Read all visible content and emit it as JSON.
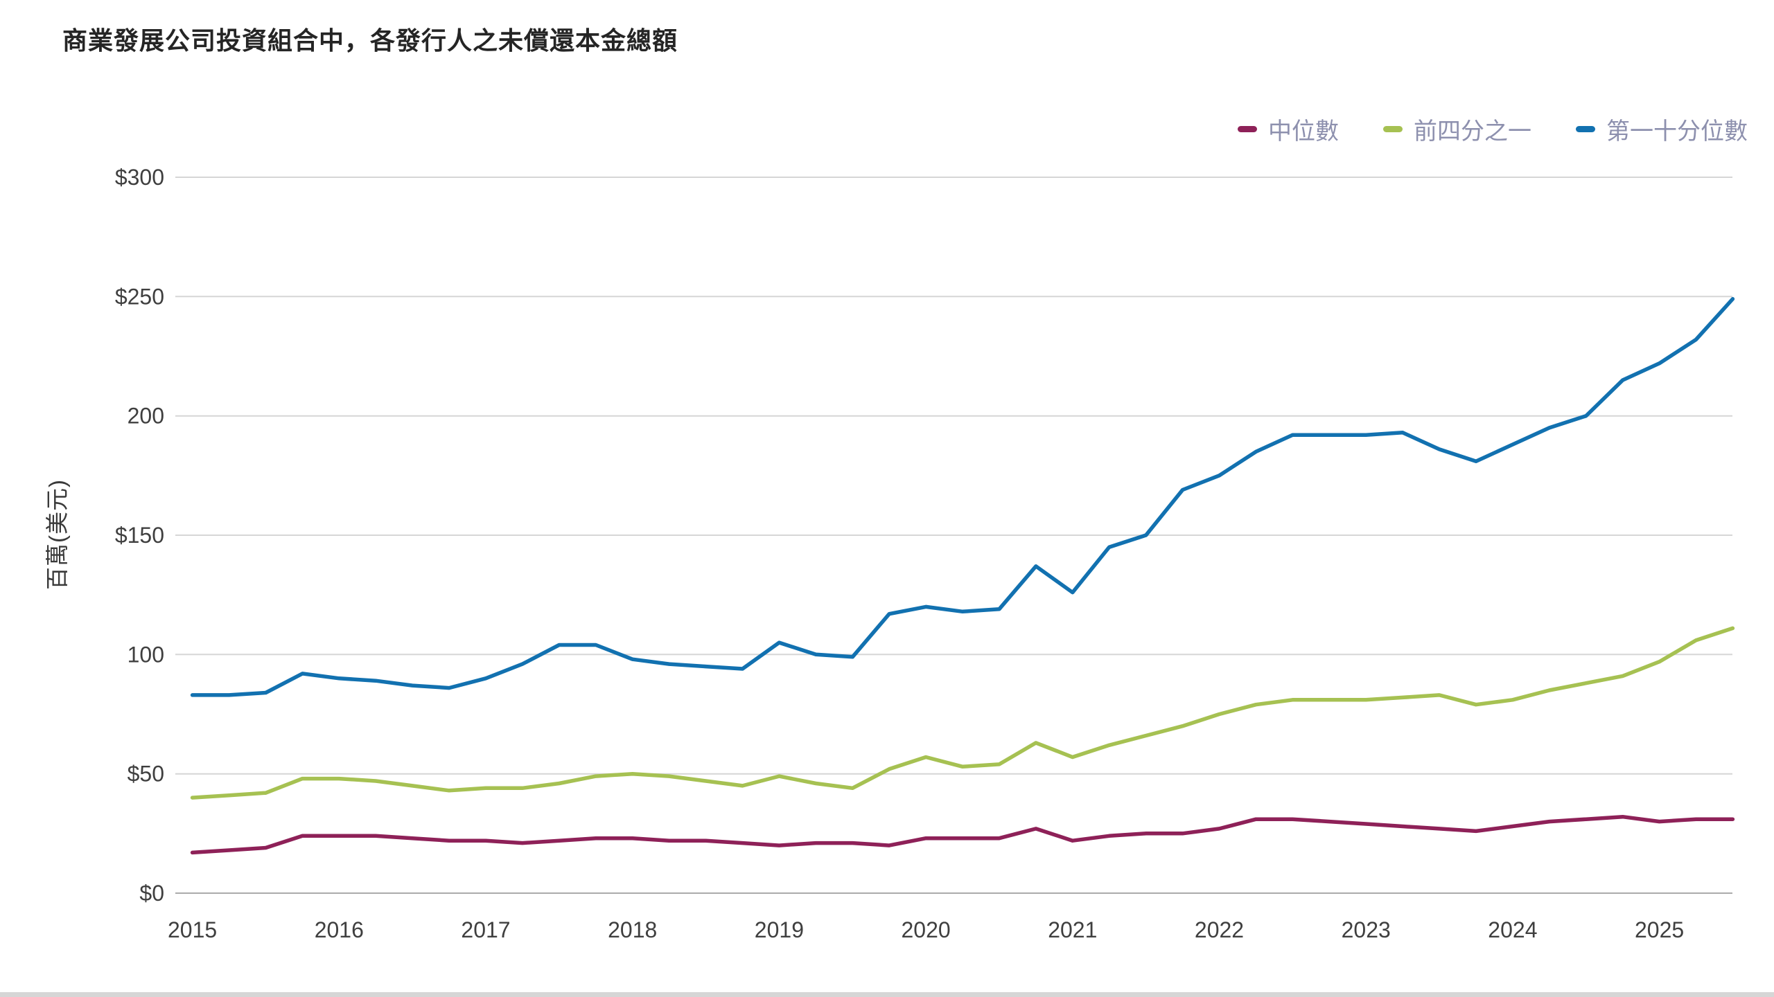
{
  "page": {
    "title": "商業發展公司投資組合中，各發行人之未償還本金總額"
  },
  "chart_data": {
    "type": "line",
    "title": "商業發展公司投資組合中，各發行人之未償還本金總額",
    "xlabel": "",
    "ylabel": "百萬(美元)",
    "xlim": [
      2015,
      2025.5
    ],
    "ylim": [
      0,
      300
    ],
    "grid": "horizontal",
    "legend_position": "top-right",
    "x_tick_labels": [
      "2015",
      "2016",
      "2017",
      "2018",
      "2019",
      "2020",
      "2021",
      "2022",
      "2023",
      "2024",
      "2025"
    ],
    "x_tick_values": [
      2015,
      2016,
      2017,
      2018,
      2019,
      2020,
      2021,
      2022,
      2023,
      2024,
      2025
    ],
    "y_ticks": [
      {
        "value": 0,
        "label": "$0"
      },
      {
        "value": 50,
        "label": "$50"
      },
      {
        "value": 100,
        "label": "100"
      },
      {
        "value": 150,
        "label": "$150"
      },
      {
        "value": 200,
        "label": "200"
      },
      {
        "value": 250,
        "label": "$250"
      },
      {
        "value": 300,
        "label": "$300"
      }
    ],
    "x": [
      2015,
      2015.25,
      2015.5,
      2015.75,
      2016,
      2016.25,
      2016.5,
      2016.75,
      2017,
      2017.25,
      2017.5,
      2017.75,
      2018,
      2018.25,
      2018.5,
      2018.75,
      2019,
      2019.25,
      2019.5,
      2019.75,
      2020,
      2020.25,
      2020.5,
      2020.75,
      2021,
      2021.25,
      2021.5,
      2021.75,
      2022,
      2022.25,
      2022.5,
      2022.75,
      2023,
      2023.25,
      2023.5,
      2023.75,
      2024,
      2024.25,
      2024.5,
      2024.75,
      2025,
      2025.25,
      2025.5
    ],
    "series": [
      {
        "name": "中位數",
        "color": "#8E2158",
        "values": [
          17,
          18,
          19,
          24,
          24,
          24,
          23,
          22,
          22,
          21,
          22,
          23,
          23,
          22,
          22,
          21,
          20,
          21,
          21,
          20,
          23,
          23,
          23,
          27,
          22,
          24,
          25,
          25,
          27,
          31,
          31,
          30,
          29,
          28,
          27,
          26,
          28,
          30,
          31,
          32,
          30,
          31,
          31
        ]
      },
      {
        "name": "前四分之一",
        "color": "#A6C152",
        "values": [
          40,
          41,
          42,
          48,
          48,
          47,
          45,
          43,
          44,
          44,
          46,
          49,
          50,
          49,
          47,
          45,
          49,
          46,
          44,
          52,
          57,
          53,
          54,
          63,
          57,
          62,
          66,
          70,
          75,
          79,
          81,
          81,
          81,
          82,
          83,
          79,
          81,
          85,
          88,
          91,
          97,
          106,
          111
        ]
      },
      {
        "name": "第一十分位數",
        "color": "#1271B0",
        "values": [
          83,
          83,
          84,
          92,
          90,
          89,
          87,
          86,
          90,
          96,
          104,
          104,
          98,
          96,
          95,
          94,
          105,
          100,
          99,
          117,
          120,
          118,
          119,
          137,
          126,
          145,
          150,
          169,
          175,
          185,
          192,
          192,
          192,
          193,
          186,
          181,
          188,
          195,
          200,
          215,
          222,
          232,
          249
        ]
      }
    ]
  }
}
